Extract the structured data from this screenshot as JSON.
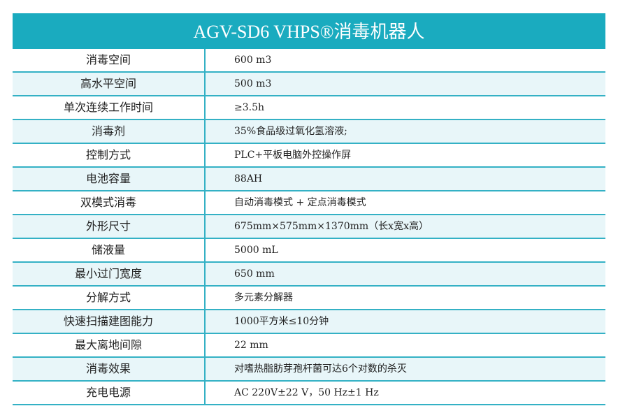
{
  "title": "AGV-SD6 VHPS®消毒机器人",
  "rows": [
    {
      "label": "消毒空间",
      "value": "600 m3"
    },
    {
      "label": "高水平空间",
      "value": "500 m3"
    },
    {
      "label": "单次连续工作时间",
      "value": "≥3.5h"
    },
    {
      "label": "消毒剂",
      "value": "35%食品级过氧化氢溶液;"
    },
    {
      "label": "控制方式",
      "value": "PLC+平板电脑外控操作屏"
    },
    {
      "label": "电池容量",
      "value": "88AH"
    },
    {
      "label": "双模式消毒",
      "value": "自动消毒模式 +  定点消毒模式"
    },
    {
      "label": "外形尺寸",
      "value": "675mm×575mm×1370mm（长x宽x高）"
    },
    {
      "label": "储液量",
      "value": "5000 mL"
    },
    {
      "label": "最小过门宽度",
      "value": "650 mm"
    },
    {
      "label": "分解方式",
      "value": "多元素分解器"
    },
    {
      "label": "快速扫描建图能力",
      "value": "1000平方米≤10分钟"
    },
    {
      "label": "最大离地间隙",
      "value": "22 mm"
    },
    {
      "label": "消毒效果",
      "value": "对嗜热脂肪芽孢杆菌可达6个对数的杀灭"
    },
    {
      "label": "充电电源",
      "value": "AC 220V±22 V，50 Hz±1 Hz"
    }
  ],
  "colors": {
    "header": "#1aabbf",
    "border": "#34b1c5",
    "alt_row": "#e8f6f9"
  }
}
